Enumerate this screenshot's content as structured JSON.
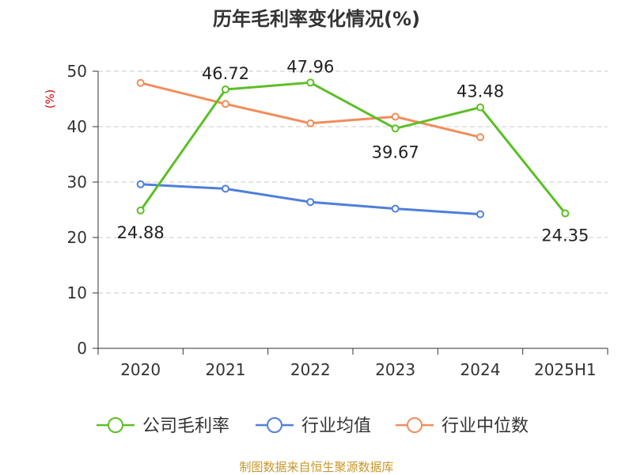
{
  "chart_data": {
    "type": "line",
    "title": "历年毛利率变化情况(%)",
    "ylabel": "(%)",
    "xlabel": "",
    "categories": [
      "2020",
      "2021",
      "2022",
      "2023",
      "2024",
      "2025H1"
    ],
    "ylim": [
      0,
      50
    ],
    "yticks": [
      0,
      10,
      20,
      30,
      40,
      50
    ],
    "grid": true,
    "legend_position": "bottom",
    "series": [
      {
        "name": "公司毛利率",
        "color": "#5cbf26",
        "values": [
          24.88,
          46.72,
          47.96,
          39.67,
          43.48,
          24.35
        ],
        "labels": [
          "24.88",
          "46.72",
          "47.96",
          "39.67",
          "43.48",
          "24.35"
        ]
      },
      {
        "name": "行业均值",
        "color": "#4f7fdb",
        "values": [
          29.6,
          28.8,
          26.4,
          25.2,
          24.2,
          null
        ]
      },
      {
        "name": "行业中位数",
        "color": "#f28c5a",
        "values": [
          47.9,
          44.1,
          40.6,
          41.8,
          38.1,
          null
        ]
      }
    ]
  },
  "source": "制图数据来自恒生聚源数据库"
}
